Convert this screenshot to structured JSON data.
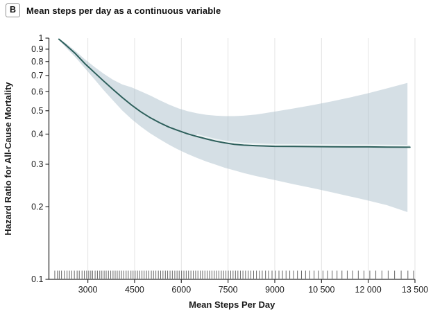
{
  "panel": {
    "label": "B",
    "title": "Mean steps per day as a continuous variable"
  },
  "colors": {
    "line": "#2d5f5b",
    "band_fill": "rgba(167,188,200,0.48)",
    "line_casing": "#eef4f5",
    "grid": "#e3e3e3",
    "axis": "#2b2b2b",
    "text": "#1a1a1a",
    "rug": "#3f3f3f",
    "panel_box_border": "#8f8f8f"
  },
  "chart_data": {
    "type": "line",
    "title": "Mean steps per day as a continuous variable",
    "xlabel": "Mean Steps Per Day",
    "ylabel": "Hazard Ratio for All-Cause Mortality",
    "x_domain": [
      1750,
      13500
    ],
    "y_domain": [
      0.1,
      1
    ],
    "y_scale": "log10",
    "grid": "vertical-only",
    "legend": "none",
    "x_ticks": [
      {
        "v": 3000,
        "label": "3000"
      },
      {
        "v": 4500,
        "label": "4500"
      },
      {
        "v": 6000,
        "label": "6000"
      },
      {
        "v": 7500,
        "label": "7500"
      },
      {
        "v": 9000,
        "label": "9000"
      },
      {
        "v": 10500,
        "label": "10 500"
      },
      {
        "v": 12000,
        "label": "12 000"
      },
      {
        "v": 13500,
        "label": "13 500"
      }
    ],
    "y_ticks": [
      {
        "v": 1.0,
        "label": "1"
      },
      {
        "v": 0.9,
        "label": "0.9"
      },
      {
        "v": 0.8,
        "label": "0.8"
      },
      {
        "v": 0.7,
        "label": "0.7"
      },
      {
        "v": 0.6,
        "label": "0.6"
      },
      {
        "v": 0.5,
        "label": "0.5"
      },
      {
        "v": 0.4,
        "label": "0.4"
      },
      {
        "v": 0.3,
        "label": "0.3"
      },
      {
        "v": 0.2,
        "label": "0.2"
      },
      {
        "v": 0.1,
        "label": "0.1"
      }
    ],
    "series": [
      {
        "name": "hazard-ratio-spline",
        "points": [
          [
            2070,
            0.99
          ],
          [
            2300,
            0.935
          ],
          [
            2600,
            0.862
          ],
          [
            2900,
            0.785
          ],
          [
            3200,
            0.722
          ],
          [
            3500,
            0.665
          ],
          [
            3800,
            0.614
          ],
          [
            4100,
            0.568
          ],
          [
            4400,
            0.528
          ],
          [
            4700,
            0.495
          ],
          [
            5000,
            0.468
          ],
          [
            5300,
            0.446
          ],
          [
            5600,
            0.428
          ],
          [
            5900,
            0.414
          ],
          [
            6200,
            0.401
          ],
          [
            6500,
            0.391
          ],
          [
            6800,
            0.382
          ],
          [
            7100,
            0.374
          ],
          [
            7400,
            0.368
          ],
          [
            7700,
            0.363
          ],
          [
            8000,
            0.36
          ],
          [
            8400,
            0.358
          ],
          [
            9000,
            0.356
          ],
          [
            9600,
            0.3555
          ],
          [
            10200,
            0.355
          ],
          [
            10800,
            0.3545
          ],
          [
            11400,
            0.354
          ],
          [
            12000,
            0.354
          ],
          [
            12600,
            0.3535
          ],
          [
            13340,
            0.353
          ]
        ]
      }
    ],
    "band": {
      "name": "95%-confidence-band",
      "upper": [
        [
          2070,
          0.995
        ],
        [
          2300,
          0.95
        ],
        [
          2600,
          0.885
        ],
        [
          2900,
          0.818
        ],
        [
          3200,
          0.762
        ],
        [
          3500,
          0.713
        ],
        [
          3800,
          0.673
        ],
        [
          4100,
          0.643
        ],
        [
          4400,
          0.625
        ],
        [
          4700,
          0.602
        ],
        [
          5000,
          0.578
        ],
        [
          5300,
          0.553
        ],
        [
          5600,
          0.531
        ],
        [
          5900,
          0.512
        ],
        [
          6200,
          0.498
        ],
        [
          6500,
          0.488
        ],
        [
          6800,
          0.481
        ],
        [
          7100,
          0.477
        ],
        [
          7400,
          0.475
        ],
        [
          7700,
          0.475
        ],
        [
          8000,
          0.477
        ],
        [
          8400,
          0.482
        ],
        [
          9000,
          0.496
        ],
        [
          9600,
          0.511
        ],
        [
          10200,
          0.527
        ],
        [
          10800,
          0.546
        ],
        [
          11400,
          0.567
        ],
        [
          12000,
          0.591
        ],
        [
          12600,
          0.619
        ],
        [
          13260,
          0.652
        ]
      ],
      "lower": [
        [
          2070,
          0.985
        ],
        [
          2300,
          0.912
        ],
        [
          2600,
          0.833
        ],
        [
          2900,
          0.752
        ],
        [
          3200,
          0.678
        ],
        [
          3500,
          0.61
        ],
        [
          3800,
          0.553
        ],
        [
          4100,
          0.502
        ],
        [
          4400,
          0.462
        ],
        [
          4700,
          0.43
        ],
        [
          5000,
          0.403
        ],
        [
          5300,
          0.381
        ],
        [
          5600,
          0.362
        ],
        [
          5900,
          0.345
        ],
        [
          6200,
          0.331
        ],
        [
          6500,
          0.319
        ],
        [
          6800,
          0.308
        ],
        [
          7100,
          0.299
        ],
        [
          7400,
          0.29
        ],
        [
          7700,
          0.283
        ],
        [
          8000,
          0.276
        ],
        [
          8400,
          0.268
        ],
        [
          9000,
          0.258
        ],
        [
          9600,
          0.248
        ],
        [
          10200,
          0.239
        ],
        [
          10800,
          0.23
        ],
        [
          11400,
          0.221
        ],
        [
          12000,
          0.212
        ],
        [
          12600,
          0.203
        ],
        [
          13260,
          0.19
        ]
      ]
    },
    "rug": {
      "name": "observation-rug",
      "x": [
        1938,
        2022,
        2081,
        2154,
        2243,
        2332,
        2408,
        2484,
        2566,
        2655,
        2724,
        2813,
        2887,
        2961,
        3028,
        3094,
        3151,
        3233,
        3307,
        3382,
        3449,
        3523,
        3588,
        3661,
        3734,
        3808,
        3876,
        3943,
        4012,
        4079,
        4153,
        4228,
        4297,
        4383,
        4451,
        4519,
        4592,
        4663,
        4737,
        4806,
        4882,
        4958,
        5037,
        5108,
        5183,
        5262,
        5336,
        5411,
        5487,
        5561,
        5638,
        5712,
        5791,
        5863,
        5932,
        6008,
        6083,
        6157,
        6232,
        6308,
        6383,
        6459,
        6533,
        6608,
        6682,
        6757,
        6831,
        6906,
        6982,
        7057,
        7131,
        7206,
        7283,
        7357,
        7432,
        7508,
        7586,
        7661,
        7738,
        7816,
        7897,
        7978,
        8061,
        8147,
        8233,
        8321,
        8412,
        8504,
        8598,
        8703,
        8801,
        8912,
        9023,
        9134,
        9247,
        9362,
        9481,
        9603,
        9728,
        9857,
        9989,
        10124,
        10262,
        10403,
        10547,
        10694,
        10844,
        10998,
        11156,
        11327,
        11502,
        11681,
        11864,
        12051,
        12243,
        12439,
        12640,
        12846,
        13057,
        13273,
        13455
      ]
    }
  }
}
